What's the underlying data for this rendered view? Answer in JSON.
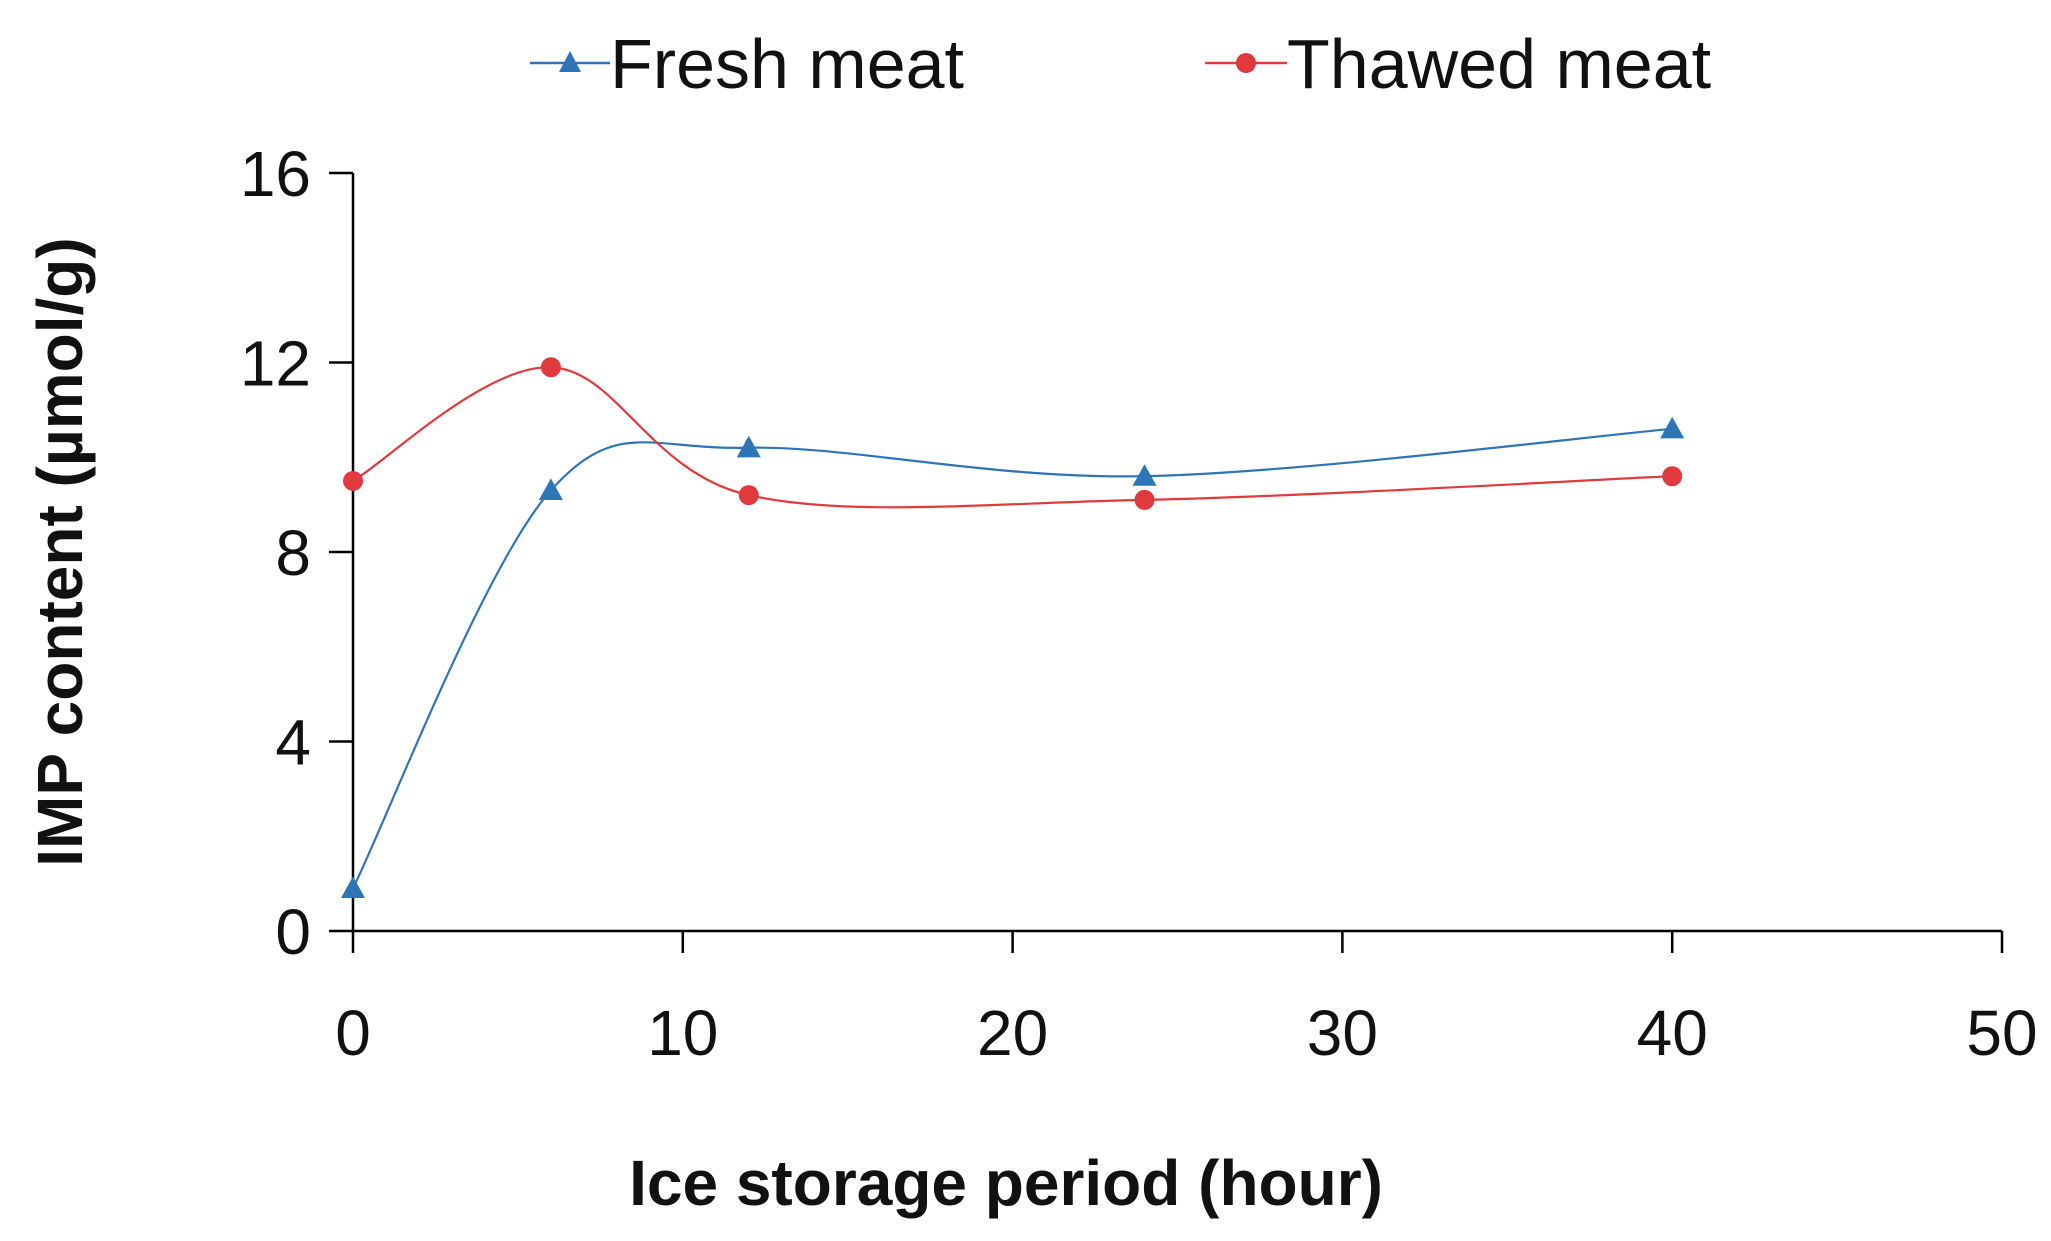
{
  "chart_data": {
    "type": "line",
    "title": "",
    "xlabel": "Ice storage period (hour)",
    "ylabel": "IMP content (µmol/g)",
    "xlim": [
      0,
      50
    ],
    "ylim": [
      0,
      16
    ],
    "xticks": [
      0,
      10,
      20,
      30,
      40,
      50
    ],
    "yticks": [
      0,
      4,
      8,
      12,
      16
    ],
    "grid": false,
    "smooth": true,
    "legend_position": "top",
    "series": [
      {
        "name": "Fresh meat",
        "color": "#2E75B6",
        "marker": "triangle",
        "x": [
          0,
          6,
          12,
          24,
          40
        ],
        "y": [
          0.9,
          9.3,
          10.2,
          9.6,
          10.6
        ]
      },
      {
        "name": "Thawed meat",
        "color": "#E0393E",
        "marker": "circle",
        "x": [
          0,
          6,
          12,
          24,
          40
        ],
        "y": [
          9.5,
          11.9,
          9.2,
          9.1,
          9.6
        ]
      }
    ]
  }
}
